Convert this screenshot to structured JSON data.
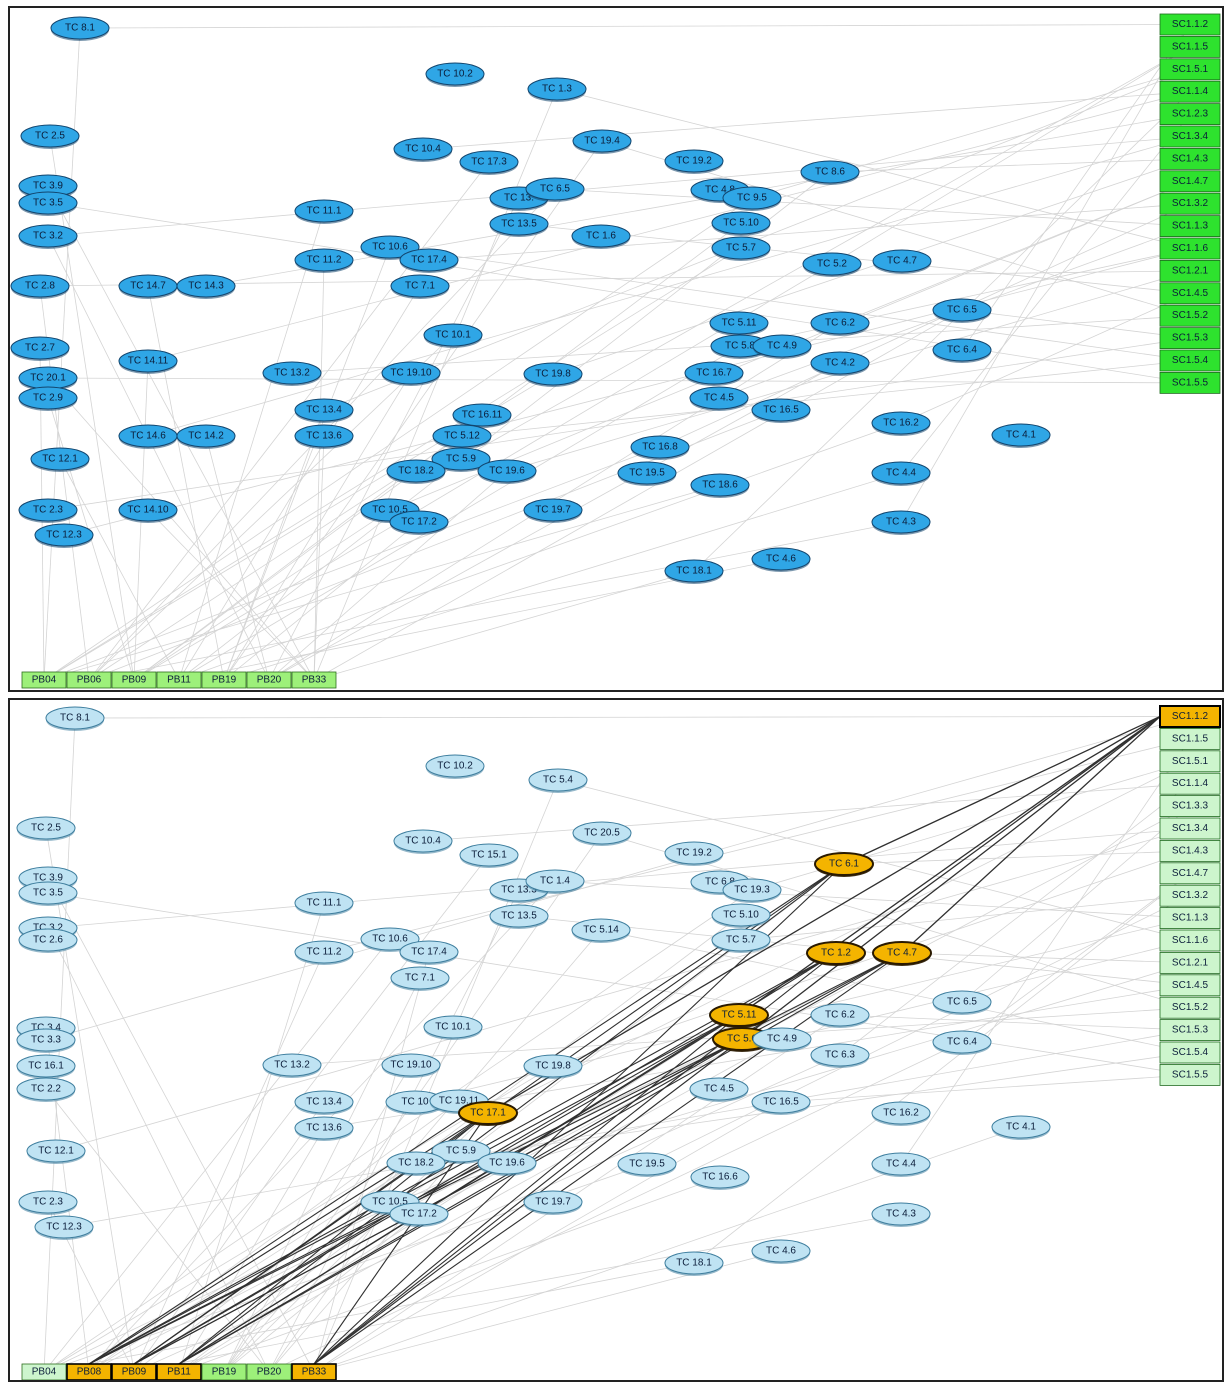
{
  "colors": {
    "node_blue": "#2fa6e6",
    "node_blue_stroke": "#12456e",
    "node_light": "#bfe3f3",
    "node_light_stroke": "#3e7e9e",
    "node_highlight": "#f4b400",
    "node_highlight_stroke": "#2a1a00",
    "sc_green": "#2ee22e",
    "sc_light": "#cdf5cd",
    "pb_green": "#9df07a",
    "edge_faint": "#d4d4d4",
    "edge_dark": "#303030"
  },
  "top": {
    "test_cases": [
      "TC 8.1",
      "TC 10.2",
      "TC 1.3",
      "TC 2.5",
      "TC 10.4",
      "TC 17.3",
      "TC 19.4",
      "TC 19.2",
      "TC 8.6",
      "TC 3.9",
      "TC 3.5",
      "TC 13.",
      "TC 6.5",
      "TC 4.8",
      "TC 9.5",
      "TC 11.1",
      "TC 13.5",
      "TC 5.10",
      "TC 3.2",
      "TC 1.6",
      "TC 10.6",
      "TC 5.7",
      "TC 17.4",
      "TC 11.2",
      "TC 5.2",
      "TC 4.7",
      "TC 2.8",
      "TC 14.7",
      "TC 14.3",
      "TC 7.1",
      "TC 6.5",
      "TC 5.11",
      "TC 6.2",
      "TC 10.1",
      "TC 6.4",
      "TC 2.7",
      "TC 5.8",
      "TC 4.9",
      "TC 14.11",
      "TC 4.2",
      "TC 13.2",
      "TC 19.10",
      "TC 19.8",
      "TC 16.7",
      "TC 20.1",
      "TC 2.9",
      "TC 4.5",
      "TC 16.5",
      "TC 13.4",
      "TC 16.11",
      "TC 16.2",
      "TC 13.6",
      "TC 14.6",
      "TC 14.2",
      "TC 5.12",
      "TC 4.1",
      "TC 16.8",
      "TC 12.1",
      "TC 5.9",
      "TC 18.2",
      "TC 19.6",
      "TC 19.5",
      "TC 4.4",
      "TC 18.6",
      "TC 2.3",
      "TC 14.10",
      "TC 10.5",
      "TC 19.7",
      "TC 4.3",
      "TC 17.2",
      "TC 12.3",
      "TC 4.6",
      "TC 18.1"
    ],
    "requirements": [
      "SC1.1.2",
      "SC1.1.5",
      "SC1.5.1",
      "SC1.1.4",
      "SC1.2.3",
      "SC1.3.4",
      "SC1.4.3",
      "SC1.4.7",
      "SC1.3.2",
      "SC1.1.3",
      "SC1.1.6",
      "SC1.2.1",
      "SC1.4.5",
      "SC1.5.2",
      "SC1.5.3",
      "SC1.5.4",
      "SC1.5.5"
    ],
    "builds": [
      "PB04",
      "PB06",
      "PB09",
      "PB11",
      "PB19",
      "PB20",
      "PB33"
    ]
  },
  "bottom": {
    "test_cases": [
      "TC 8.1",
      "TC 10.2",
      "TC 5.4",
      "TC 2.5",
      "TC 10.4",
      "TC 15.1",
      "TC 20.5",
      "TC 19.2",
      "TC 6.1",
      "TC 3.9",
      "TC 3.5",
      "TC 13.3",
      "TC 1.4",
      "TC 6.8",
      "TC 19.3",
      "TC 11.1",
      "TC 13.5",
      "TC 5.10",
      "TC 3.2",
      "TC 2.6",
      "TC 5.14",
      "TC 10.6",
      "TC 5.7",
      "TC 17.4",
      "TC 11.2",
      "TC 1.2",
      "TC 4.7",
      "TC 7.1",
      "TC 6.5",
      "TC 5.11",
      "TC 6.2",
      "TC 10.1",
      "TC 6.4",
      "TC 3.4",
      "TC 3.3",
      "TC 5.6",
      "TC 4.9",
      "TC 16.1",
      "TC 6.3",
      "TC 2.2",
      "TC 13.2",
      "TC 19.10",
      "TC 19.8",
      "TC 4.5",
      "TC 16.5",
      "TC 13.4",
      "TC 10",
      "TC 19.11",
      "TC 17.1",
      "TC 16.2",
      "TC 13.6",
      "TC 4.1",
      "TC 12.1",
      "TC 5.9",
      "TC 18.2",
      "TC 19.6",
      "TC 19.5",
      "TC 16.6",
      "TC 4.4",
      "TC 2.3",
      "TC 10.5",
      "TC 19.7",
      "TC 17.2",
      "TC 4.3",
      "TC 12.3",
      "TC 4.6",
      "TC 18.1"
    ],
    "highlighted": [
      "TC 6.1",
      "TC 1.2",
      "TC 4.7",
      "TC 5.11",
      "TC 5.6",
      "TC 17.1"
    ],
    "requirements": [
      "SC1.1.2",
      "SC1.1.5",
      "SC1.5.1",
      "SC1.1.4",
      "SC1.3.3",
      "SC1.3.4",
      "SC1.4.3",
      "SC1.4.7",
      "SC1.3.2",
      "SC1.1.3",
      "SC1.1.6",
      "SC1.2.1",
      "SC1.4.5",
      "SC1.5.2",
      "SC1.5.3",
      "SC1.5.4",
      "SC1.5.5"
    ],
    "selected_requirement": "SC1.1.2",
    "builds": [
      "PB04",
      "PB08",
      "PB09",
      "PB11",
      "PB19",
      "PB20",
      "PB33"
    ],
    "highlighted_builds": [
      "PB08",
      "PB09",
      "PB11",
      "PB33"
    ],
    "faded_builds": [
      "PB04"
    ]
  }
}
